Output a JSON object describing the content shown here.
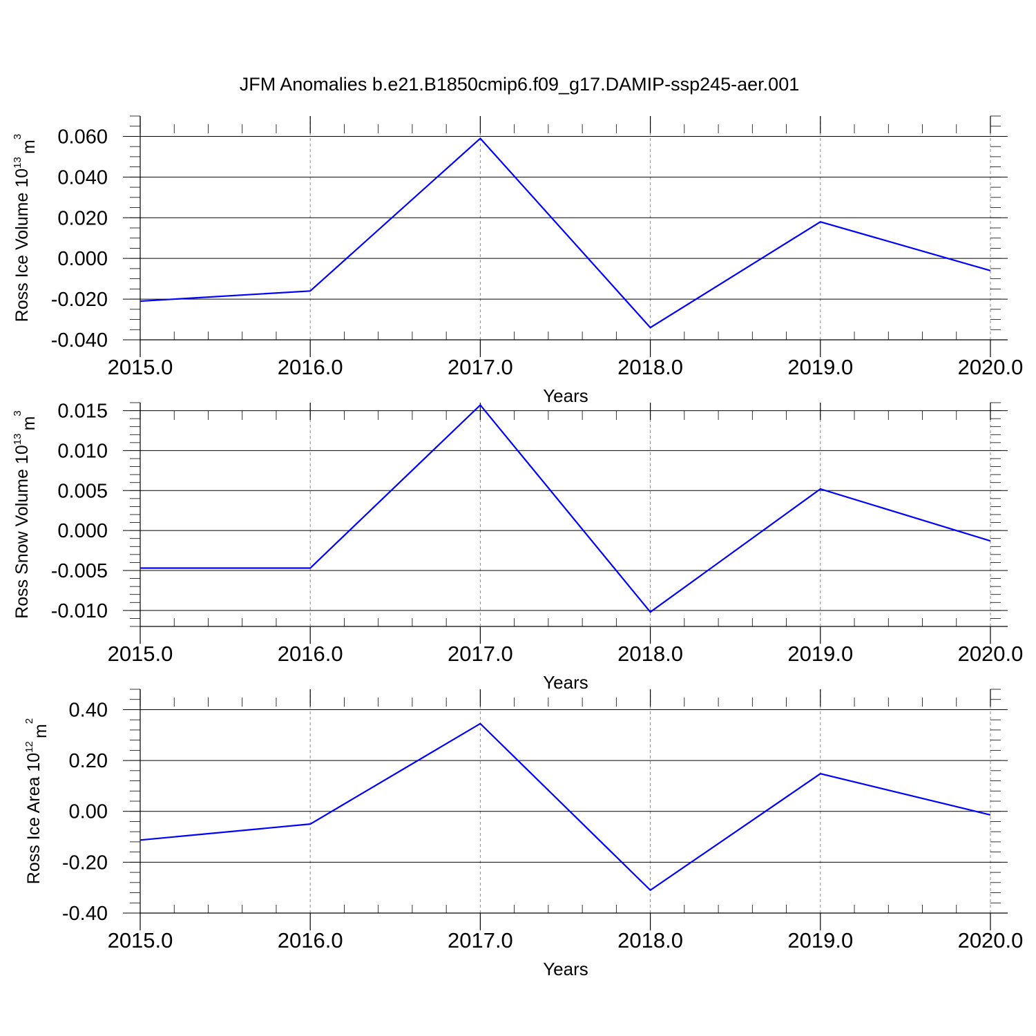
{
  "title": "JFM Anomalies b.e21.B1850cmip6.f09_g17.DAMIP-ssp245-aer.001",
  "colors": {
    "line": "#0000ff",
    "axis": "#000000",
    "grid": "#888888"
  },
  "chart_data": [
    {
      "type": "line",
      "ylabel": "Ross Ice Volume",
      "ylabel_unit_base": "10",
      "ylabel_unit_exp": "13",
      "ylabel_unit_tail": "m",
      "ylabel_unit_tail_exp": "3",
      "xlabel": "Years",
      "xlim": [
        2015,
        2020
      ],
      "ylim": [
        -0.04,
        0.07
      ],
      "xticks": [
        "2015.0",
        "2016.0",
        "2017.0",
        "2018.0",
        "2019.0",
        "2020.0"
      ],
      "yticks": [
        {
          "value": 0.06,
          "label": "0.060"
        },
        {
          "value": 0.04,
          "label": "0.040"
        },
        {
          "value": 0.02,
          "label": "0.020"
        },
        {
          "value": 0.0,
          "label": "0.000"
        },
        {
          "value": -0.02,
          "label": "-0.020"
        },
        {
          "value": -0.04,
          "label": "-0.040"
        }
      ],
      "yminor_step": 0.005,
      "grid": "vertical-dashed",
      "x": [
        2015,
        2016,
        2017,
        2018,
        2019,
        2020
      ],
      "values": [
        -0.021,
        -0.016,
        0.059,
        -0.034,
        0.018,
        -0.006
      ]
    },
    {
      "type": "line",
      "ylabel": "Ross Snow Volume",
      "ylabel_unit_base": "10",
      "ylabel_unit_exp": "13",
      "ylabel_unit_tail": "m",
      "ylabel_unit_tail_exp": "3",
      "xlabel": "Years",
      "xlim": [
        2015,
        2020
      ],
      "ylim": [
        -0.012,
        0.016
      ],
      "xticks": [
        "2015.0",
        "2016.0",
        "2017.0",
        "2018.0",
        "2019.0",
        "2020.0"
      ],
      "yticks": [
        {
          "value": 0.015,
          "label": "0.015"
        },
        {
          "value": 0.01,
          "label": "0.010"
        },
        {
          "value": 0.005,
          "label": "0.005"
        },
        {
          "value": 0.0,
          "label": "0.000"
        },
        {
          "value": -0.005,
          "label": "-0.005"
        },
        {
          "value": -0.01,
          "label": "-0.010"
        }
      ],
      "yminor_step": 0.001,
      "grid": "vertical-dashed",
      "x": [
        2015,
        2016,
        2017,
        2018,
        2019,
        2020
      ],
      "values": [
        -0.0047,
        -0.0047,
        0.0157,
        -0.0102,
        0.0052,
        -0.0013
      ]
    },
    {
      "type": "line",
      "ylabel": "Ross Ice Area",
      "ylabel_unit_base": "10",
      "ylabel_unit_exp": "12",
      "ylabel_unit_tail": "m",
      "ylabel_unit_tail_exp": "2",
      "xlabel": "Years",
      "xlim": [
        2015,
        2020
      ],
      "ylim": [
        -0.4,
        0.48
      ],
      "xticks": [
        "2015.0",
        "2016.0",
        "2017.0",
        "2018.0",
        "2019.0",
        "2020.0"
      ],
      "yticks": [
        {
          "value": 0.4,
          "label": "0.40"
        },
        {
          "value": 0.2,
          "label": "0.20"
        },
        {
          "value": 0.0,
          "label": "0.00"
        },
        {
          "value": -0.2,
          "label": "-0.20"
        },
        {
          "value": -0.4,
          "label": "-0.40"
        }
      ],
      "yminor_step": 0.04,
      "grid": "vertical-dashed",
      "x": [
        2015,
        2016,
        2017,
        2018,
        2019,
        2020
      ],
      "values": [
        -0.113,
        -0.05,
        0.345,
        -0.31,
        0.148,
        -0.014
      ]
    }
  ]
}
